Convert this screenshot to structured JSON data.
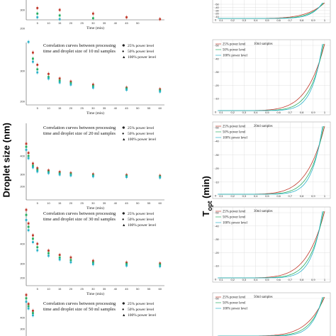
{
  "left_axis_title": "Droplet size (nm)",
  "right_axis_title": "T",
  "right_axis_sub": "opt",
  "right_axis_unit": " (min)",
  "legend": [
    "25% power level",
    "50% power level",
    "100% power level"
  ],
  "colors": {
    "p25": "#c0392b",
    "p50": "#27ae60",
    "p100": "#2bb3c9",
    "grid": "#cfcfcf"
  },
  "chart_data": [
    {
      "type": "scatter",
      "title": "",
      "x_ticks": [
        "5",
        "10",
        "15",
        "20",
        "25",
        "30",
        "35",
        "40",
        "45",
        "50"
      ],
      "y_ticks": [
        "300",
        "200"
      ],
      "xlabel": "Time (min)",
      "series": [
        {
          "values": [
            [
              5,
              310
            ],
            [
              15,
              300
            ],
            [
              30,
              280
            ],
            [
              45,
              260
            ],
            [
              60,
              250
            ]
          ]
        },
        {
          "values": [
            [
              5,
              280
            ],
            [
              15,
              270
            ],
            [
              30,
              255
            ],
            [
              45,
              245
            ],
            [
              60,
              240
            ]
          ]
        },
        {
          "values": [
            [
              5,
              260
            ],
            [
              15,
              250
            ],
            [
              30,
              240
            ],
            [
              45,
              230
            ],
            [
              60,
              225
            ]
          ]
        }
      ]
    },
    {
      "type": "scatter",
      "title": "Correlation curves between processing time and droplet size of 10 ml samples",
      "title_lines": [
        "Correlation curves between processing",
        "time and droplet size of 10 ml samples"
      ],
      "x_ticks": [
        "5",
        "10",
        "15",
        "20",
        "25",
        "30",
        "35",
        "40",
        "45",
        "50",
        "55",
        "60"
      ],
      "y_ticks": [
        "300",
        "200"
      ],
      "xlabel": "Time (min)",
      "series": [
        {
          "values": [
            [
              0,
              480
            ],
            [
              1,
              430
            ],
            [
              3,
              360
            ],
            [
              5,
              320
            ],
            [
              10,
              290
            ],
            [
              15,
              275
            ],
            [
              20,
              265
            ],
            [
              30,
              255
            ],
            [
              45,
              245
            ],
            [
              60,
              240
            ]
          ]
        },
        {
          "values": [
            [
              0,
              460
            ],
            [
              1,
              410
            ],
            [
              3,
              340
            ],
            [
              5,
              305
            ],
            [
              10,
              280
            ],
            [
              15,
              268
            ],
            [
              20,
              260
            ],
            [
              30,
              250
            ],
            [
              45,
              242
            ],
            [
              60,
              236
            ]
          ]
        },
        {
          "values": [
            [
              0,
              440
            ],
            [
              1,
              395
            ],
            [
              3,
              330
            ],
            [
              5,
              295
            ],
            [
              10,
              275
            ],
            [
              15,
              262
            ],
            [
              20,
              255
            ],
            [
              30,
              245
            ],
            [
              45,
              238
            ],
            [
              60,
              232
            ]
          ]
        }
      ]
    },
    {
      "type": "scatter",
      "title": "Correlation curves between processing time and droplet size of 20 ml samples",
      "title_lines": [
        "Correlation curves between processing",
        "time and droplet size of 20 ml samples"
      ],
      "x_ticks": [
        "5",
        "10",
        "15",
        "20",
        "25",
        "30",
        "35",
        "40",
        "45",
        "50",
        "55",
        "60"
      ],
      "y_ticks": [
        "400",
        "300",
        "200"
      ],
      "xlabel": "Time (min)",
      "series": [
        {
          "values": [
            [
              0,
              480
            ],
            [
              1,
              420
            ],
            [
              3,
              350
            ],
            [
              5,
              320
            ],
            [
              10,
              305
            ],
            [
              15,
              295
            ],
            [
              20,
              288
            ],
            [
              30,
              280
            ],
            [
              45,
              275
            ],
            [
              60,
              270
            ]
          ]
        },
        {
          "values": [
            [
              0,
              460
            ],
            [
              1,
              400
            ],
            [
              3,
              335
            ],
            [
              5,
              308
            ],
            [
              10,
              295
            ],
            [
              15,
              285
            ],
            [
              20,
              280
            ],
            [
              30,
              272
            ],
            [
              45,
              268
            ],
            [
              60,
              264
            ]
          ]
        },
        {
          "values": [
            [
              0,
              440
            ],
            [
              1,
              385
            ],
            [
              3,
              325
            ],
            [
              5,
              298
            ],
            [
              10,
              288
            ],
            [
              15,
              278
            ],
            [
              20,
              272
            ],
            [
              30,
              266
            ],
            [
              45,
              262
            ],
            [
              60,
              258
            ]
          ]
        }
      ]
    },
    {
      "type": "scatter",
      "title": "Correlation curves between processing time and droplet size of 30 ml samples",
      "title_lines": [
        "Correlation curves between processing",
        "time and droplet size of 30 ml samples"
      ],
      "x_ticks": [
        "5",
        "10",
        "15",
        "20",
        "25",
        "30",
        "35",
        "40",
        "45",
        "50",
        "55",
        "60"
      ],
      "y_ticks": [
        "400",
        "300",
        "200"
      ],
      "xlabel": "Time (min)",
      "series": [
        {
          "values": [
            [
              0,
              600
            ],
            [
              1,
              520
            ],
            [
              3,
              450
            ],
            [
              5,
              400
            ],
            [
              10,
              360
            ],
            [
              15,
              335
            ],
            [
              20,
              320
            ],
            [
              30,
              300
            ],
            [
              45,
              290
            ],
            [
              60,
              285
            ]
          ]
        },
        {
          "values": [
            [
              0,
              570
            ],
            [
              1,
              500
            ],
            [
              3,
              430
            ],
            [
              5,
              380
            ],
            [
              10,
              345
            ],
            [
              15,
              320
            ],
            [
              20,
              305
            ],
            [
              30,
              290
            ],
            [
              45,
              282
            ],
            [
              60,
              278
            ]
          ]
        },
        {
          "values": [
            [
              0,
              540
            ],
            [
              1,
              480
            ],
            [
              3,
              410
            ],
            [
              5,
              362
            ],
            [
              10,
              330
            ],
            [
              15,
              308
            ],
            [
              20,
              292
            ],
            [
              30,
              280
            ],
            [
              45,
              272
            ],
            [
              60,
              268
            ]
          ]
        }
      ]
    },
    {
      "type": "scatter",
      "title": "Correlation curves between processing time and droplet size of 50 ml samples",
      "title_lines": [
        "Correlation curves between processing",
        "time and droplet size of 50 ml samples"
      ],
      "x_ticks": [],
      "y_ticks": [
        "400",
        "300"
      ],
      "xlabel": "",
      "series": [
        {
          "values": [
            [
              0,
              600
            ],
            [
              1,
              520
            ],
            [
              3,
              460
            ]
          ]
        },
        {
          "values": [
            [
              0,
              570
            ],
            [
              1,
              500
            ],
            [
              3,
              440
            ]
          ]
        },
        {
          "values": [
            [
              0,
              540
            ],
            [
              1,
              480
            ],
            [
              3,
              420
            ]
          ]
        }
      ]
    }
  ],
  "right_charts": [
    {
      "title": "",
      "x_ticks": [
        "0.1",
        "0.2",
        "0.3",
        "0.4",
        "0.5",
        "0.6",
        "0.7",
        "0.8",
        "0.9",
        "1"
      ],
      "y_ticks": [
        "-50",
        "-40",
        "-30",
        "-20",
        "-10",
        "0"
      ]
    },
    {
      "title": "10ml samples",
      "x_ticks": [
        "0.1",
        "0.2",
        "0.3",
        "0.4",
        "0.5",
        "0.6",
        "0.7",
        "0.8",
        "0.9",
        "1"
      ],
      "y_ticks": [
        "-50",
        "-40",
        "-30",
        "-20",
        "-10",
        "0"
      ]
    },
    {
      "title": "20ml samples",
      "x_ticks": [
        "0.1",
        "0.2",
        "0.3",
        "0.4",
        "0.5",
        "0.6",
        "0.7",
        "0.8",
        "0.9",
        "1"
      ],
      "y_ticks": [
        "-50",
        "-40",
        "-30",
        "-20",
        "-10",
        "0"
      ]
    },
    {
      "title": "30ml samples",
      "x_ticks": [
        "0.1",
        "0.2",
        "0.3",
        "0.4",
        "0.5",
        "0.6",
        "0.7",
        "0.8",
        "0.9",
        "1"
      ],
      "y_ticks": [
        "-50",
        "-40",
        "-30",
        "-20",
        "-10",
        "0"
      ]
    },
    {
      "title": "50ml samples",
      "x_ticks": [],
      "y_ticks": [
        "-50",
        "-40"
      ]
    }
  ]
}
